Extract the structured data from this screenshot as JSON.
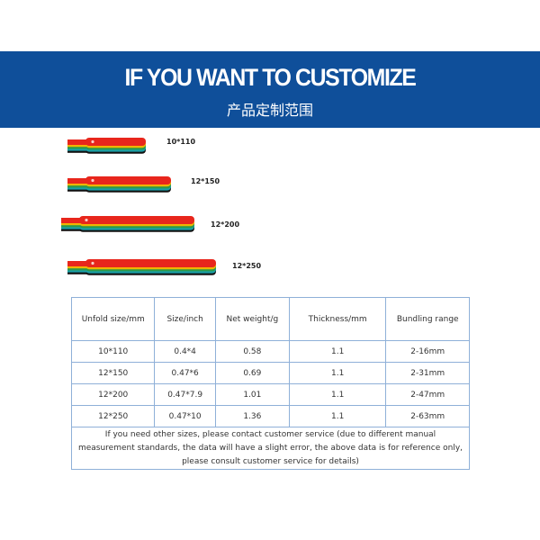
{
  "header": {
    "title": "IF YOU WANT TO CUSTOMIZE",
    "subtitle": "产品定制范围"
  },
  "products": {
    "labels": [
      "10*110",
      "12*150",
      "12*200",
      "12*250"
    ]
  },
  "table": {
    "headers": [
      "Unfold size/mm",
      "Size/inch",
      "Net weight/g",
      "Thickness/mm",
      "Bundling range"
    ],
    "rows": [
      [
        "10*110",
        "0.4*4",
        "0.58",
        "1.1",
        "2-16mm"
      ],
      [
        "12*150",
        "0.47*6",
        "0.69",
        "1.1",
        "2-31mm"
      ],
      [
        "12*200",
        "0.47*7.9",
        "1.01",
        "1.1",
        "2-47mm"
      ],
      [
        "12*250",
        "0.47*10",
        "1.36",
        "1.1",
        "2-63mm"
      ]
    ],
    "note": "If you need other sizes, please contact customer service (due to different manual measurement standards, the data will have a slight error, the above data is for reference only, please consult customer service for details)"
  }
}
